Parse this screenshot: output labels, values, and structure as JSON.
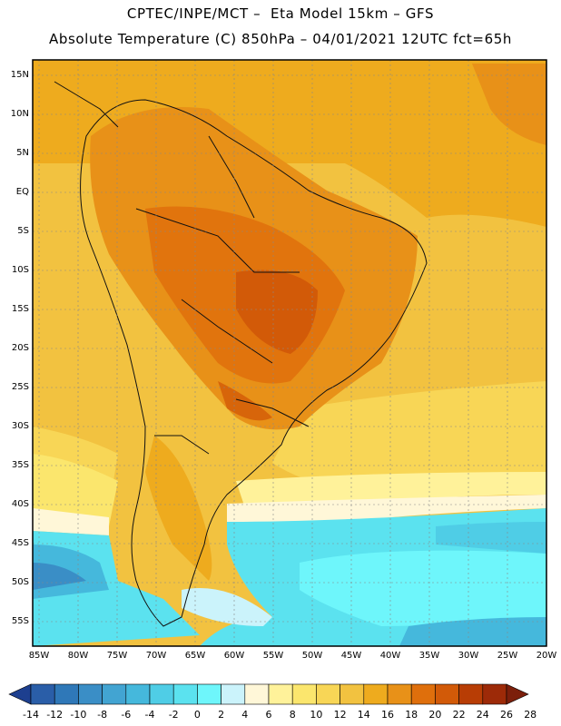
{
  "header": {
    "line1": "CPTEC/INPE/MCT –  Eta Model 15km – GFS",
    "line2": "Absolute Temperature (C) 850hPa – 04/01/2021 12UTC fct=65h"
  },
  "map": {
    "lat_ticks": [
      "15N",
      "10N",
      "5N",
      "EQ",
      "5S",
      "10S",
      "15S",
      "20S",
      "25S",
      "30S",
      "35S",
      "40S",
      "45S",
      "50S",
      "55S"
    ],
    "lon_ticks": [
      "85W",
      "80W",
      "75W",
      "70W",
      "65W",
      "60W",
      "55W",
      "50W",
      "45W",
      "40W",
      "35W",
      "30W",
      "25W",
      "20W"
    ]
  },
  "colorbar": {
    "labels": [
      "-14",
      "-12",
      "-10",
      "-8",
      "-6",
      "-4",
      "-2",
      "0",
      "2",
      "4",
      "6",
      "8",
      "10",
      "12",
      "14",
      "16",
      "18",
      "20",
      "22",
      "24",
      "26",
      "28"
    ],
    "colors": [
      "#1d3f8f",
      "#2a5ea8",
      "#2f78b8",
      "#3a8ec6",
      "#42a4d2",
      "#45b8dc",
      "#4fcde6",
      "#5be2ef",
      "#6ef6fb",
      "#cbf3fb",
      "#fff7d8",
      "#fff29a",
      "#fbe66d",
      "#f8d656",
      "#f2c240",
      "#eeab1e",
      "#e89118",
      "#df6f0c",
      "#d25a08",
      "#b83d05",
      "#9d2a08",
      "#7c1f0b"
    ],
    "unit": "C"
  }
}
